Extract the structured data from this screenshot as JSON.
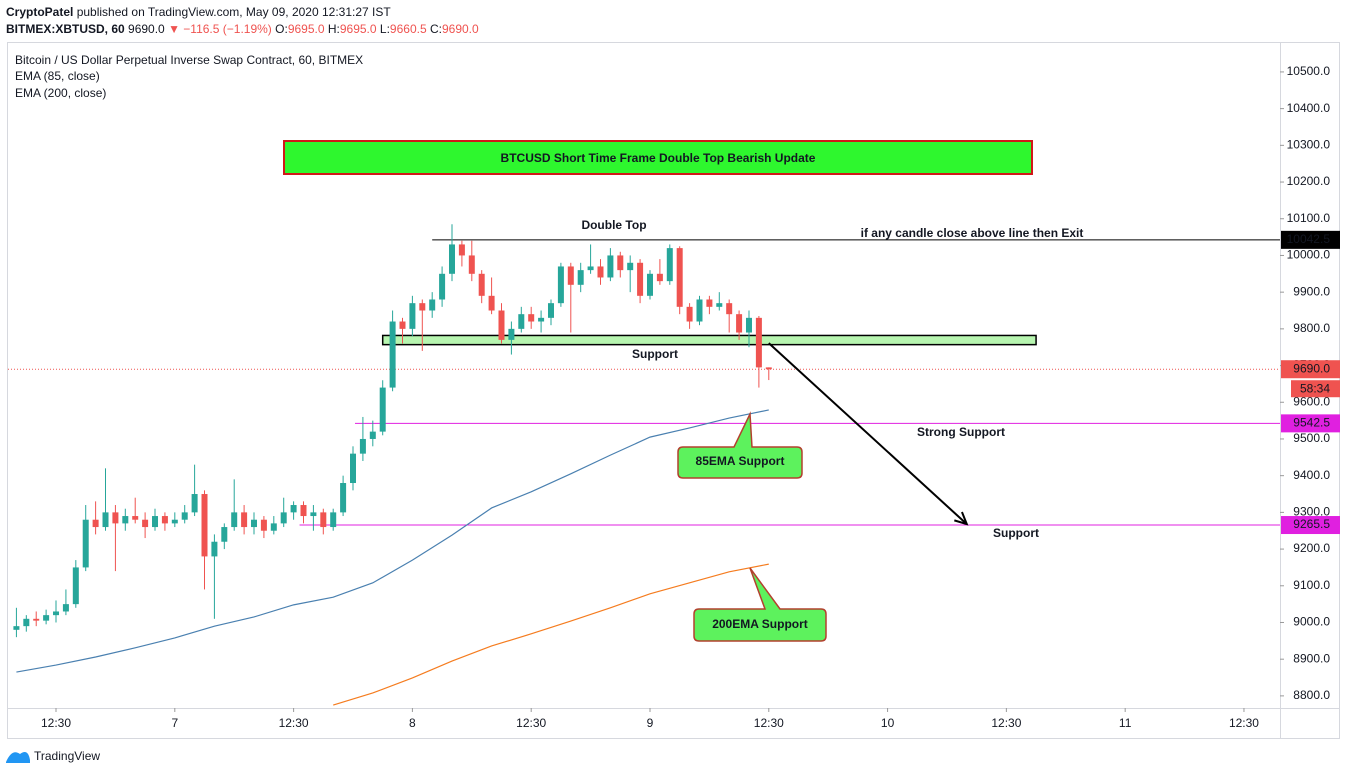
{
  "header": {
    "author": "CryptoPatel",
    "published": "published on TradingView.com, May 09, 2020 12:31:27 IST",
    "symbol": "BITMEX:XBTUSD, 60",
    "price": "9690.0",
    "change": "▼ −116.5 (−1.19%)",
    "ohlc": [
      {
        "label": "O:",
        "value": "9695.0"
      },
      {
        "label": "H:",
        "value": "9695.0"
      },
      {
        "label": "L:",
        "value": "9660.5"
      },
      {
        "label": "C:",
        "value": "9690.0"
      }
    ]
  },
  "brand": "TradingView",
  "chart_data": {
    "type": "candlestick",
    "title": "BTCUSD Short Time Frame Double Top Bearish Update",
    "subtitle": "Bitcoin / US Dollar Perpetual Inverse Swap Contract, 60, BITMEX",
    "up_color": "#26a69a",
    "down_color": "#ef5350",
    "x": [
      8,
      9,
      10,
      11,
      12,
      13,
      14,
      15,
      16,
      17,
      18,
      19,
      20,
      21,
      22,
      23,
      24,
      25,
      26,
      27,
      28,
      29,
      30,
      31,
      32,
      33,
      34,
      35,
      36,
      37,
      38,
      39,
      40,
      41,
      42,
      43,
      44,
      45,
      46,
      47,
      48,
      49,
      50,
      51,
      52,
      53,
      54,
      55,
      56,
      57,
      58,
      59,
      60,
      61,
      62,
      63,
      64,
      65,
      66,
      67,
      68,
      69,
      70,
      71,
      72,
      73,
      74,
      75,
      76,
      77,
      78,
      79,
      80,
      81,
      82,
      83,
      84
    ],
    "candles": [
      [
        8980,
        9040,
        8960,
        8990
      ],
      [
        8990,
        9020,
        8975,
        9010
      ],
      [
        9010,
        9030,
        8990,
        9005
      ],
      [
        9005,
        9035,
        8995,
        9020
      ],
      [
        9020,
        9060,
        9000,
        9030
      ],
      [
        9030,
        9090,
        9020,
        9050
      ],
      [
        9050,
        9170,
        9040,
        9150
      ],
      [
        9150,
        9320,
        9140,
        9280
      ],
      [
        9280,
        9330,
        9240,
        9260
      ],
      [
        9260,
        9420,
        9250,
        9300
      ],
      [
        9300,
        9320,
        9140,
        9270
      ],
      [
        9270,
        9310,
        9250,
        9290
      ],
      [
        9290,
        9340,
        9270,
        9280
      ],
      [
        9280,
        9300,
        9230,
        9260
      ],
      [
        9260,
        9310,
        9250,
        9290
      ],
      [
        9290,
        9300,
        9250,
        9270
      ],
      [
        9270,
        9300,
        9260,
        9280
      ],
      [
        9280,
        9320,
        9270,
        9300
      ],
      [
        9300,
        9430,
        9290,
        9350
      ],
      [
        9350,
        9360,
        9090,
        9180
      ],
      [
        9180,
        9240,
        9010,
        9220
      ],
      [
        9220,
        9270,
        9200,
        9260
      ],
      [
        9260,
        9390,
        9250,
        9300
      ],
      [
        9300,
        9320,
        9240,
        9260
      ],
      [
        9260,
        9300,
        9240,
        9280
      ],
      [
        9280,
        9290,
        9230,
        9250
      ],
      [
        9250,
        9290,
        9240,
        9270
      ],
      [
        9270,
        9340,
        9260,
        9300
      ],
      [
        9300,
        9330,
        9280,
        9320
      ],
      [
        9320,
        9330,
        9270,
        9290
      ],
      [
        9290,
        9320,
        9250,
        9300
      ],
      [
        9300,
        9310,
        9240,
        9260
      ],
      [
        9260,
        9310,
        9250,
        9300
      ],
      [
        9300,
        9400,
        9290,
        9380
      ],
      [
        9380,
        9480,
        9360,
        9460
      ],
      [
        9460,
        9560,
        9440,
        9500
      ],
      [
        9500,
        9550,
        9480,
        9520
      ],
      [
        9520,
        9660,
        9510,
        9640
      ],
      [
        9640,
        9850,
        9630,
        9820
      ],
      [
        9820,
        9830,
        9760,
        9800
      ],
      [
        9800,
        9890,
        9780,
        9870
      ],
      [
        9870,
        9880,
        9740,
        9850
      ],
      [
        9850,
        9900,
        9830,
        9880
      ],
      [
        9880,
        9970,
        9860,
        9950
      ],
      [
        9950,
        10085,
        9930,
        10030
      ],
      [
        10030,
        10040,
        9970,
        10000
      ],
      [
        10000,
        10040,
        9930,
        9950
      ],
      [
        9950,
        9960,
        9870,
        9890
      ],
      [
        9890,
        9940,
        9840,
        9850
      ],
      [
        9850,
        9870,
        9760,
        9770
      ],
      [
        9770,
        9820,
        9730,
        9800
      ],
      [
        9800,
        9860,
        9790,
        9840
      ],
      [
        9840,
        9860,
        9800,
        9820
      ],
      [
        9820,
        9850,
        9790,
        9830
      ],
      [
        9830,
        9880,
        9810,
        9870
      ],
      [
        9870,
        9980,
        9860,
        9970
      ],
      [
        9970,
        9980,
        9790,
        9920
      ],
      [
        9920,
        9980,
        9900,
        9960
      ],
      [
        9960,
        10030,
        9950,
        9970
      ],
      [
        9970,
        9990,
        9920,
        9940
      ],
      [
        9940,
        10020,
        9930,
        10000
      ],
      [
        10000,
        10010,
        9940,
        9960
      ],
      [
        9960,
        10000,
        9900,
        9980
      ],
      [
        9980,
        9990,
        9870,
        9890
      ],
      [
        9890,
        9960,
        9880,
        9950
      ],
      [
        9950,
        9990,
        9920,
        9930
      ],
      [
        9930,
        10030,
        9920,
        10020
      ],
      [
        10020,
        10025,
        9840,
        9860
      ],
      [
        9860,
        9870,
        9800,
        9820
      ],
      [
        9820,
        9890,
        9810,
        9880
      ],
      [
        9880,
        9890,
        9840,
        9860
      ],
      [
        9860,
        9900,
        9850,
        9870
      ],
      [
        9870,
        9880,
        9790,
        9840
      ],
      [
        9840,
        9850,
        9770,
        9790
      ],
      [
        9790,
        9850,
        9750,
        9830
      ],
      [
        9830,
        9835,
        9640,
        9695
      ],
      [
        9695,
        9695,
        9660.5,
        9690
      ]
    ],
    "series": [
      {
        "name": "EMA (85, close)",
        "color": "#4a80b0",
        "x": [
          8,
          12,
          16,
          20,
          24,
          28,
          32,
          36,
          40,
          44,
          48,
          52,
          56,
          60,
          64,
          68,
          72,
          76,
          80,
          84
        ],
        "values": [
          8865,
          8884,
          8906,
          8931,
          8958,
          8990,
          9015,
          9048,
          9069,
          9108,
          9170,
          9238,
          9312,
          9356,
          9405,
          9456,
          9505,
          9530,
          9557,
          9579
        ]
      },
      {
        "name": "EMA (200, close)",
        "color": "#f57c1f",
        "x": [
          40,
          44,
          48,
          52,
          56,
          60,
          64,
          68,
          72,
          76,
          80,
          84
        ],
        "values": [
          8775,
          8808,
          8849,
          8895,
          8936,
          8969,
          9004,
          9040,
          9078,
          9108,
          9138,
          9159
        ]
      }
    ],
    "levels": [
      {
        "value": 10042.5,
        "label": "10042.5",
        "color": "#000000",
        "from_x": 50
      },
      {
        "value": 9690,
        "label": "9690.0",
        "color": "#ef5350",
        "dash": true,
        "countdown": "58:34"
      },
      {
        "value": 9542.5,
        "label": "9542.5",
        "color": "#e020e0",
        "from_x": 42.2
      },
      {
        "value": 9265.5,
        "label": "9265.5",
        "color": "#e020e0",
        "from_x": 36.6
      }
    ],
    "zone": {
      "top": 9782,
      "bottom": 9757,
      "x": [
        45,
        111
      ],
      "color": "#b7f5b0"
    },
    "arrow": {
      "x": [
        84,
        104
      ],
      "y": [
        9761,
        9268
      ]
    },
    "annotations": {
      "double_top": "Double Top",
      "exit": "if any candle close above line then Exit",
      "support": "Support",
      "strong_support": "Strong Support",
      "lower_support": "Support",
      "ema85": "85EMA Support",
      "ema200": "200EMA Support"
    },
    "xlim": [
      7.15,
      135.64
    ],
    "xticks": [
      {
        "value": 12,
        "label": "12:30"
      },
      {
        "value": 24,
        "label": "7"
      },
      {
        "value": 36,
        "label": "12:30"
      },
      {
        "value": 48,
        "label": "8"
      },
      {
        "value": 60,
        "label": "12:30"
      },
      {
        "value": 72,
        "label": "9"
      },
      {
        "value": 84,
        "label": "12:30"
      },
      {
        "value": 96,
        "label": "10"
      },
      {
        "value": 108,
        "label": "12:30"
      },
      {
        "value": 120,
        "label": "11"
      },
      {
        "value": 132,
        "label": "12:30"
      }
    ],
    "ylim": [
      8767,
      10587
    ],
    "yticks": [
      {
        "value": 8800,
        "label": "8800.0"
      },
      {
        "value": 8900,
        "label": "8900.0"
      },
      {
        "value": 9000,
        "label": "9000.0"
      },
      {
        "value": 9100,
        "label": "9100.0"
      },
      {
        "value": 9200,
        "label": "9200.0"
      },
      {
        "value": 9300,
        "label": "9300.0"
      },
      {
        "value": 9400,
        "label": "9400.0"
      },
      {
        "value": 9500,
        "label": "9500.0"
      },
      {
        "value": 9600,
        "label": "9600.0"
      },
      {
        "value": 9700,
        "label": "9700.0"
      },
      {
        "value": 9800,
        "label": "9800.0"
      },
      {
        "value": 9900,
        "label": "9900.0"
      },
      {
        "value": 10000,
        "label": "10000.0"
      },
      {
        "value": 10100,
        "label": "10100.0"
      },
      {
        "value": 10200,
        "label": "10200.0"
      },
      {
        "value": 10300,
        "label": "10300.0"
      },
      {
        "value": 10400,
        "label": "10400.0"
      },
      {
        "value": 10500,
        "label": "10500.0"
      }
    ]
  }
}
